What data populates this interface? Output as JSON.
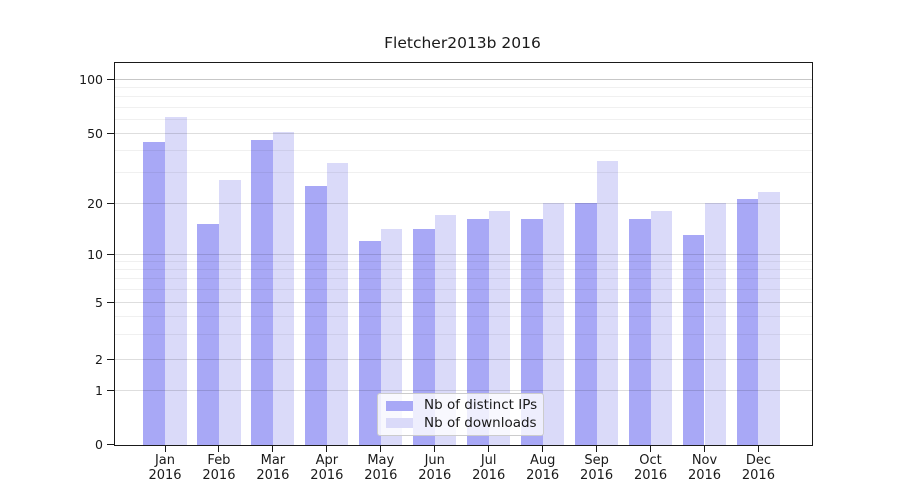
{
  "chart_data": {
    "type": "bar",
    "title": "Fletcher2013b 2016",
    "categories": [
      "Jan 2016",
      "Feb 2016",
      "Mar 2016",
      "Apr 2016",
      "May 2016",
      "Jun 2016",
      "Jul 2016",
      "Aug 2016",
      "Sep 2016",
      "Oct 2016",
      "Nov 2016",
      "Dec 2016"
    ],
    "series": [
      {
        "name": "Nb of distinct IPs",
        "color": "#a8a8f6",
        "values": [
          45,
          15,
          46,
          25,
          12,
          14,
          16,
          16,
          20,
          16,
          13,
          21
        ]
      },
      {
        "name": "Nb of downloads",
        "color": "#dadaf9",
        "values": [
          62,
          27,
          51,
          34,
          14,
          17,
          18,
          20,
          35,
          18,
          20,
          23
        ]
      }
    ],
    "xlabel": "",
    "ylabel": "",
    "yscale": "symlog",
    "ylim": [
      0,
      125
    ],
    "ytick_labels": [
      "100",
      "50",
      "20",
      "10",
      "5",
      "2",
      "1",
      "0"
    ],
    "major_gridline_values": [
      1,
      2,
      5,
      10,
      20,
      50,
      100
    ],
    "minor_gridline_values": [
      3,
      4,
      6,
      7,
      8,
      9,
      30,
      40,
      60,
      70,
      80,
      90
    ],
    "grid": "on",
    "legend_position": "lower center",
    "colors": {
      "grid_major": "rgba(0,0,0,0.13)",
      "grid_minor": "rgba(0,0,0,0.06)",
      "grid_top_line": "rgba(0,0,0,0.22)",
      "axis": "#1a1a1a",
      "text": "#1a1a1a"
    }
  }
}
